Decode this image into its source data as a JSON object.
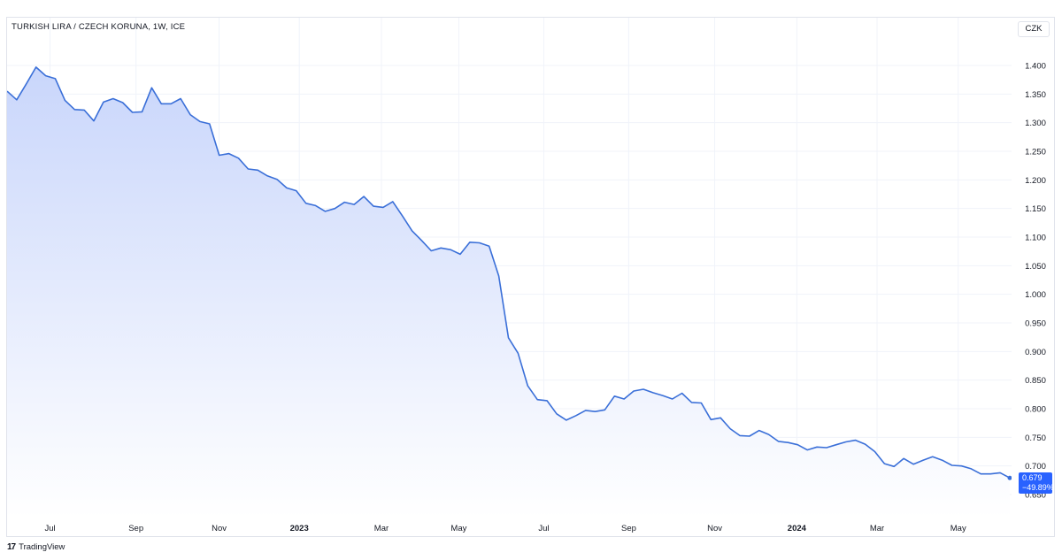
{
  "header": {
    "title": "TURKISH LIRA / CZECH KORUNA, 1W, ICE",
    "currency": "CZK"
  },
  "footer": {
    "logo": "17",
    "brand": "TradingView"
  },
  "last_price": {
    "value": "0.679",
    "change": "−49.89%"
  },
  "colors": {
    "line": "#3a6fd8",
    "fill_top": "#c9d6fb",
    "fill_bottom": "#ffffff",
    "grid": "#f0f3fa",
    "axis_text": "#131722",
    "tag": "#2962ff"
  },
  "chart_data": {
    "type": "area",
    "title": "TURKISH LIRA / CZECH KORUNA, 1W, ICE",
    "xlabel": "",
    "ylabel": "",
    "ylim": [
      0.61,
      1.44
    ],
    "y_ticks": [
      1.4,
      1.35,
      1.3,
      1.25,
      1.2,
      1.15,
      1.1,
      1.05,
      1.0,
      0.95,
      0.9,
      0.85,
      0.8,
      0.75,
      0.7,
      0.65
    ],
    "y_tick_labels": [
      "1.400",
      "1.350",
      "1.300",
      "1.250",
      "1.200",
      "1.150",
      "1.100",
      "1.050",
      "1.000",
      "0.950",
      "0.900",
      "0.850",
      "0.800",
      "0.750",
      "0.700",
      "0.650"
    ],
    "x_ticks": [
      {
        "label": "Jul",
        "week": 4.5,
        "bold": false
      },
      {
        "label": "Sep",
        "week": 13.5,
        "bold": false
      },
      {
        "label": "Nov",
        "week": 22.2,
        "bold": false
      },
      {
        "label": "2023",
        "week": 30.6,
        "bold": true
      },
      {
        "label": "Mar",
        "week": 39.2,
        "bold": false
      },
      {
        "label": "May",
        "week": 47.3,
        "bold": false
      },
      {
        "label": "Jul",
        "week": 56.2,
        "bold": false
      },
      {
        "label": "Sep",
        "week": 65.1,
        "bold": false
      },
      {
        "label": "Nov",
        "week": 74.1,
        "bold": false
      },
      {
        "label": "2024",
        "week": 82.7,
        "bold": true
      },
      {
        "label": "Mar",
        "week": 91.1,
        "bold": false
      },
      {
        "label": "May",
        "week": 99.6,
        "bold": false
      }
    ],
    "week_range": [
      0,
      105
    ],
    "series": [
      {
        "values": [
          1.355,
          1.34,
          1.368,
          1.397,
          1.382,
          1.377,
          1.339,
          1.323,
          1.322,
          1.303,
          1.336,
          1.342,
          1.335,
          1.318,
          1.319,
          1.361,
          1.333,
          1.333,
          1.342,
          1.314,
          1.302,
          1.298,
          1.243,
          1.246,
          1.238,
          1.219,
          1.217,
          1.207,
          1.201,
          1.186,
          1.181,
          1.159,
          1.155,
          1.145,
          1.15,
          1.161,
          1.157,
          1.171,
          1.154,
          1.152,
          1.162,
          1.137,
          1.111,
          1.094,
          1.076,
          1.081,
          1.078,
          1.07,
          1.091,
          1.09,
          1.084,
          1.032,
          0.924,
          0.897,
          0.84,
          0.816,
          0.814,
          0.791,
          0.78,
          0.788,
          0.797,
          0.795,
          0.798,
          0.822,
          0.817,
          0.831,
          0.834,
          0.828,
          0.823,
          0.817,
          0.827,
          0.811,
          0.81,
          0.781,
          0.784,
          0.765,
          0.753,
          0.752,
          0.762,
          0.755,
          0.743,
          0.741,
          0.737,
          0.728,
          0.733,
          0.732,
          0.737,
          0.742,
          0.745,
          0.738,
          0.725,
          0.704,
          0.699,
          0.713,
          0.703,
          0.71,
          0.716,
          0.71,
          0.701,
          0.7,
          0.695,
          0.686,
          0.686,
          0.688,
          0.679
        ]
      }
    ]
  }
}
